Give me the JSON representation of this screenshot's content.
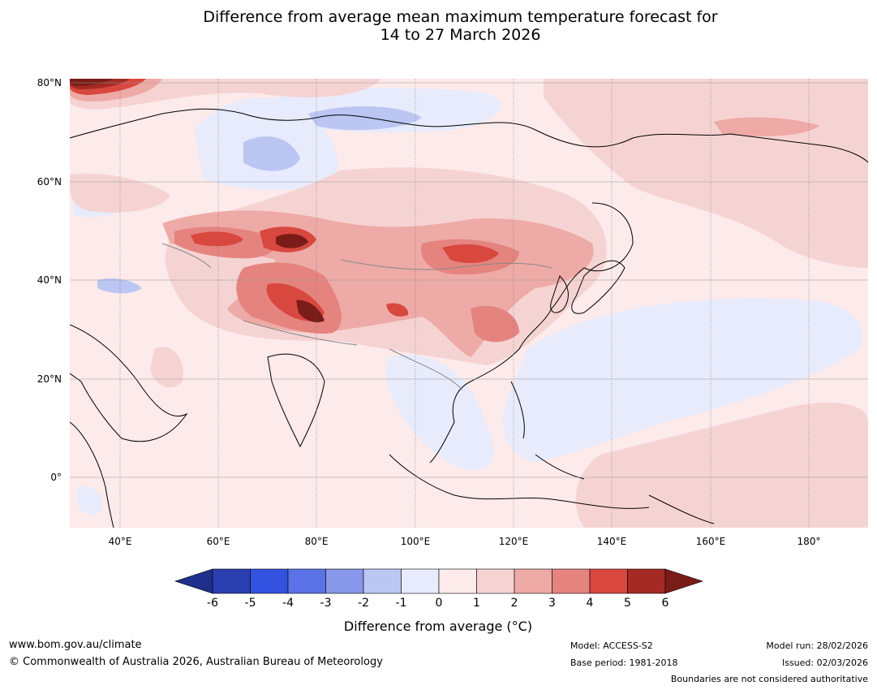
{
  "title": {
    "line1": "Difference from average mean maximum temperature forecast for",
    "line2": "14 to 27 March 2026"
  },
  "map": {
    "lat_labels": [
      "80°N",
      "60°N",
      "40°N",
      "20°N",
      "0°"
    ],
    "lon_labels": [
      "40°E",
      "60°E",
      "80°E",
      "100°E",
      "120°E",
      "140°E",
      "160°E",
      "180°"
    ],
    "extent": {
      "lon_min": 30,
      "lon_max": 192,
      "lat_min": -10,
      "lat_max": 80
    }
  },
  "colorbar": {
    "ticks": [
      "-6",
      "-5",
      "-4",
      "-3",
      "-2",
      "-1",
      "0",
      "1",
      "2",
      "3",
      "4",
      "5",
      "6"
    ],
    "colors": [
      "#1e2f8c",
      "#2a3fb0",
      "#3352e0",
      "#5b73e6",
      "#8797ea",
      "#bcc6f3",
      "#e7ebfc",
      "#fdeaea",
      "#f6d3d3",
      "#eeaaa6",
      "#e5847f",
      "#d8483f",
      "#a52a24",
      "#7a1c18"
    ],
    "label": "Difference from average (°C)"
  },
  "footer": {
    "website": "www.bom.gov.au/climate",
    "copyright": "© Commonwealth of Australia 2026, Australian Bureau of Meteorology",
    "model": "Model: ACCESS-S2",
    "base_period": "Base period: 1981-2018",
    "model_run": "Model run: 28/02/2026",
    "issued": "Issued: 02/03/2026",
    "disclaimer": "Boundaries are not considered authoritative"
  }
}
